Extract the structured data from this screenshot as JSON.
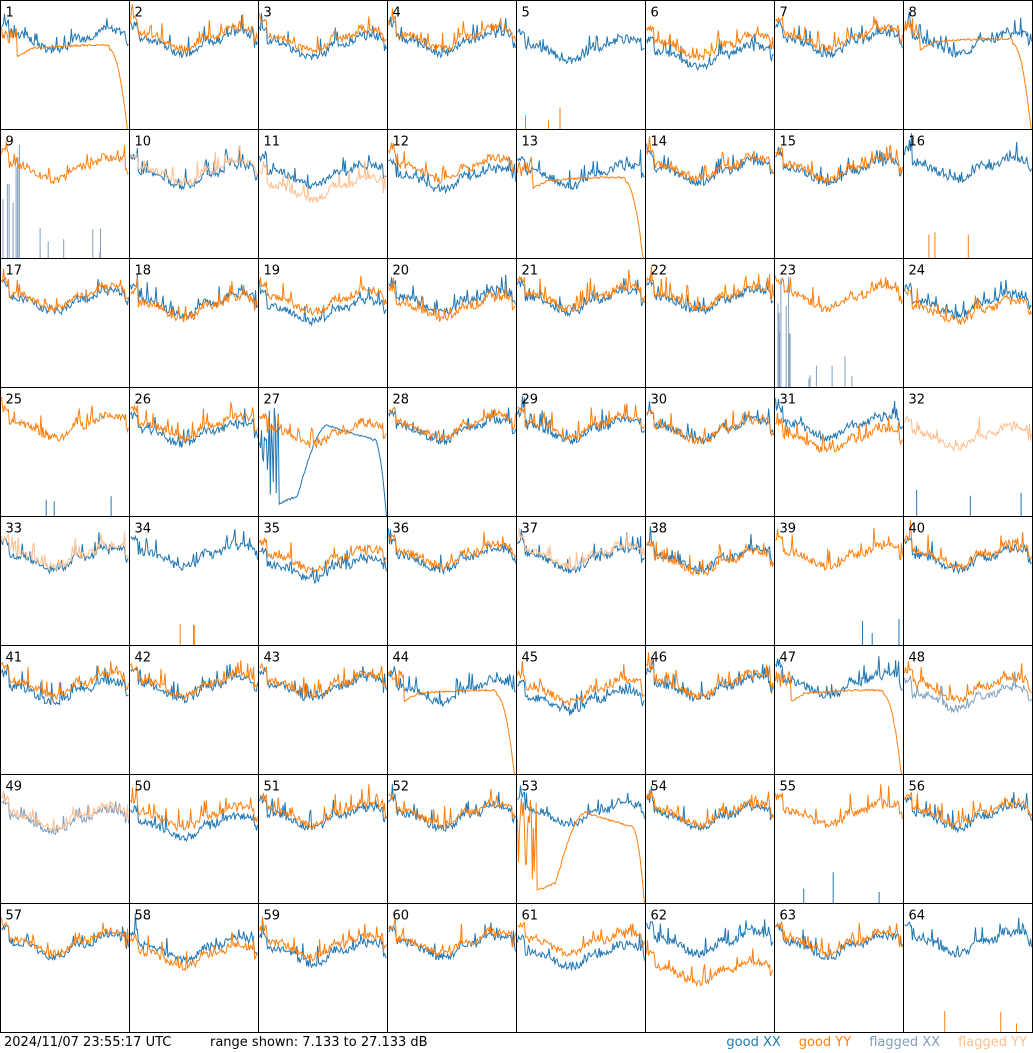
{
  "footer": {
    "timestamp": "2024/11/07 23:55:17 UTC",
    "range": "range shown: 7.133 to 27.133 dB"
  },
  "legend": [
    {
      "label": "good XX",
      "color": "#1f77b4"
    },
    {
      "label": "good YY",
      "color": "#ff7f0e"
    },
    {
      "label": "flagged XX",
      "color": "#7f9fbf"
    },
    {
      "label": "flagged YY",
      "color": "#ffbf8f"
    }
  ],
  "chart_data": {
    "type": "line",
    "grid": "8x8 small multiples",
    "x": "frequency channel (unlabeled)",
    "ylim": [
      7.133,
      27.133
    ],
    "ylabel": "",
    "panel_labels": [
      "1",
      "2",
      "3",
      "4",
      "5",
      "6",
      "7",
      "8",
      "9",
      "10",
      "11",
      "12",
      "13",
      "14",
      "15",
      "16",
      "17",
      "18",
      "19",
      "20",
      "21",
      "22",
      "23",
      "24",
      "25",
      "26",
      "27",
      "28",
      "29",
      "30",
      "31",
      "32",
      "33",
      "34",
      "35",
      "36",
      "37",
      "38",
      "39",
      "40",
      "41",
      "42",
      "43",
      "44",
      "45",
      "46",
      "47",
      "48",
      "49",
      "50",
      "51",
      "52",
      "53",
      "54",
      "55",
      "56",
      "57",
      "58",
      "59",
      "60",
      "61",
      "62",
      "63",
      "64"
    ],
    "series_names": [
      "good XX",
      "good YY",
      "flagged XX",
      "flagged YY"
    ],
    "panels": [
      {
        "id": 1,
        "xx": "good",
        "yy": "good",
        "xxLevel": 21.5,
        "yyLevel": 20.5,
        "yyShape": "decay"
      },
      {
        "id": 2,
        "xx": "good",
        "yy": "good",
        "xxLevel": 21.0,
        "yyLevel": 21.8
      },
      {
        "id": 3,
        "xx": "good",
        "yy": "good",
        "xxLevel": 20.5,
        "yyLevel": 21.5
      },
      {
        "id": 4,
        "xx": "good",
        "yy": "good",
        "xxLevel": 21.0,
        "yyLevel": 21.8
      },
      {
        "id": 5,
        "xx": "good",
        "yy": "spikes",
        "xxLevel": 20.0
      },
      {
        "id": 6,
        "xx": "good",
        "yy": "good",
        "xxLevel": 19.0,
        "yyLevel": 20.5
      },
      {
        "id": 7,
        "xx": "good",
        "yy": "good",
        "xxLevel": 21.0,
        "yyLevel": 21.8
      },
      {
        "id": 8,
        "xx": "good",
        "yy": "good",
        "xxLevel": 21.0,
        "yyLevel": 21.5,
        "yyShape": "decay"
      },
      {
        "id": 9,
        "xx": "flaggedSpikes",
        "yy": "good",
        "yyLevel": 21.5
      },
      {
        "id": 10,
        "xx": "good",
        "yy": "flagged",
        "xxLevel": 20.5,
        "yyLevel": 21.0
      },
      {
        "id": 11,
        "xx": "good",
        "yy": "flagged",
        "xxLevel": 20.5,
        "yyLevel": 18.5
      },
      {
        "id": 12,
        "xx": "good",
        "yy": "good",
        "xxLevel": 20.0,
        "yyLevel": 21.5
      },
      {
        "id": 13,
        "xx": "good",
        "yy": "good",
        "xxLevel": 20.5,
        "yyLevel": 20.0,
        "yyShape": "decay"
      },
      {
        "id": 14,
        "xx": "good",
        "yy": "good",
        "xxLevel": 21.0,
        "yyLevel": 21.5
      },
      {
        "id": 15,
        "xx": "good",
        "yy": "good",
        "xxLevel": 21.0,
        "yyLevel": 21.5
      },
      {
        "id": 16,
        "xx": "good",
        "yy": "spikes",
        "xxLevel": 21.5
      },
      {
        "id": 17,
        "xx": "good",
        "yy": "good",
        "xxLevel": 21.0,
        "yyLevel": 21.5
      },
      {
        "id": 18,
        "xx": "good",
        "yy": "good",
        "xxLevel": 20.5,
        "yyLevel": 20.0
      },
      {
        "id": 19,
        "xx": "good",
        "yy": "good",
        "xxLevel": 19.5,
        "yyLevel": 21.0
      },
      {
        "id": 20,
        "xx": "good",
        "yy": "good",
        "xxLevel": 21.0,
        "yyLevel": 20.0
      },
      {
        "id": 21,
        "xx": "good",
        "yy": "good",
        "xxLevel": 21.0,
        "yyLevel": 21.5
      },
      {
        "id": 22,
        "xx": "good",
        "yy": "good",
        "xxLevel": 21.0,
        "yyLevel": 21.5
      },
      {
        "id": 23,
        "xx": "flaggedSpikes",
        "yy": "good",
        "yyLevel": 21.5
      },
      {
        "id": 24,
        "xx": "good",
        "yy": "good",
        "xxLevel": 20.5,
        "yyLevel": 19.5
      },
      {
        "id": 25,
        "xx": "spikes",
        "yy": "good",
        "yyLevel": 21.5
      },
      {
        "id": 26,
        "xx": "good",
        "yy": "good",
        "xxLevel": 20.5,
        "yyLevel": 21.5
      },
      {
        "id": 27,
        "xx": "hump",
        "yy": "good",
        "yyLevel": 20.5
      },
      {
        "id": 28,
        "xx": "good",
        "yy": "good",
        "xxLevel": 21.0,
        "yyLevel": 21.5
      },
      {
        "id": 29,
        "xx": "good",
        "yy": "good",
        "xxLevel": 21.0,
        "yyLevel": 21.5
      },
      {
        "id": 30,
        "xx": "good",
        "yy": "good",
        "xxLevel": 21.0,
        "yyLevel": 21.0
      },
      {
        "id": 31,
        "xx": "good",
        "yy": "good",
        "xxLevel": 21.5,
        "yyLevel": 19.5
      },
      {
        "id": 32,
        "xx": "spikes",
        "yy": "flagged",
        "yyLevel": 20.0
      },
      {
        "id": 33,
        "xx": "good",
        "yy": "flagged",
        "xxLevel": 21.0,
        "yyLevel": 21.5
      },
      {
        "id": 34,
        "xx": "good",
        "yy": "spikes",
        "xxLevel": 21.5
      },
      {
        "id": 35,
        "xx": "good",
        "yy": "good",
        "xxLevel": 19.5,
        "yyLevel": 21.0
      },
      {
        "id": 36,
        "xx": "good",
        "yy": "good",
        "xxLevel": 21.0,
        "yyLevel": 21.5
      },
      {
        "id": 37,
        "xx": "good",
        "yy": "flagged",
        "xxLevel": 21.0,
        "yyLevel": 21.5
      },
      {
        "id": 38,
        "xx": "good",
        "yy": "good",
        "xxLevel": 21.0,
        "yyLevel": 20.5
      },
      {
        "id": 39,
        "xx": "spikes",
        "yy": "good",
        "yyLevel": 21.5
      },
      {
        "id": 40,
        "xx": "good",
        "yy": "good",
        "xxLevel": 21.0,
        "yyLevel": 21.5
      },
      {
        "id": 41,
        "xx": "good",
        "yy": "good",
        "xxLevel": 20.5,
        "yyLevel": 21.5
      },
      {
        "id": 42,
        "xx": "good",
        "yy": "good",
        "xxLevel": 21.0,
        "yyLevel": 21.5
      },
      {
        "id": 43,
        "xx": "good",
        "yy": "good",
        "xxLevel": 21.0,
        "yyLevel": 21.5
      },
      {
        "id": 44,
        "xx": "good",
        "yy": "good",
        "xxLevel": 20.5,
        "yyLevel": 20.5,
        "yyShape": "decay"
      },
      {
        "id": 45,
        "xx": "good",
        "yy": "good",
        "xxLevel": 19.0,
        "yyLevel": 20.5
      },
      {
        "id": 46,
        "xx": "good",
        "yy": "good",
        "xxLevel": 21.0,
        "yyLevel": 21.5
      },
      {
        "id": 47,
        "xx": "good",
        "yy": "good",
        "xxLevel": 21.5,
        "yyLevel": 20.5,
        "yyShape": "decay"
      },
      {
        "id": 48,
        "xx": "flagged",
        "yy": "good",
        "xxLevel": 19.5,
        "yyLevel": 21.0
      },
      {
        "id": 49,
        "xx": "flagged",
        "yy": "flagged",
        "xxLevel": 20.5,
        "yyLevel": 21.0
      },
      {
        "id": 50,
        "xx": "good",
        "yy": "good",
        "xxLevel": 19.5,
        "yyLevel": 21.0
      },
      {
        "id": 51,
        "xx": "good",
        "yy": "good",
        "xxLevel": 21.0,
        "yyLevel": 21.5
      },
      {
        "id": 52,
        "xx": "good",
        "yy": "good",
        "xxLevel": 21.0,
        "yyLevel": 21.5
      },
      {
        "id": 53,
        "xx": "good",
        "yy": "hump",
        "xxLevel": 21.5
      },
      {
        "id": 54,
        "xx": "good",
        "yy": "good",
        "xxLevel": 21.0,
        "yyLevel": 21.5
      },
      {
        "id": 55,
        "xx": "spikes",
        "yy": "good",
        "yyLevel": 21.5
      },
      {
        "id": 56,
        "xx": "good",
        "yy": "good",
        "xxLevel": 21.0,
        "yyLevel": 21.5
      },
      {
        "id": 57,
        "xx": "good",
        "yy": "good",
        "xxLevel": 21.0,
        "yyLevel": 21.5
      },
      {
        "id": 58,
        "xx": "good",
        "yy": "good",
        "xxLevel": 20.5,
        "yyLevel": 19.5
      },
      {
        "id": 59,
        "xx": "good",
        "yy": "good",
        "xxLevel": 20.0,
        "yyLevel": 21.0
      },
      {
        "id": 60,
        "xx": "good",
        "yy": "good",
        "xxLevel": 21.0,
        "yyLevel": 21.5
      },
      {
        "id": 61,
        "xx": "good",
        "yy": "good",
        "xxLevel": 19.5,
        "yyLevel": 21.5
      },
      {
        "id": 62,
        "xx": "good",
        "yy": "good",
        "xxLevel": 21.5,
        "yyLevel": 17.0
      },
      {
        "id": 63,
        "xx": "good",
        "yy": "good",
        "xxLevel": 21.0,
        "yyLevel": 21.5
      },
      {
        "id": 64,
        "xx": "good",
        "yy": "spikes",
        "xxLevel": 21.5
      }
    ]
  }
}
